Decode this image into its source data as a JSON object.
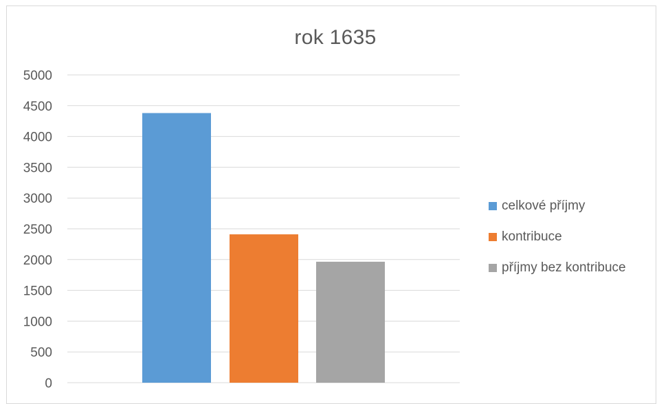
{
  "chart_data": {
    "type": "bar",
    "title": "rok 1635",
    "categories": [
      "celkové příjmy",
      "kontribuce",
      "příjmy bez kontribuce"
    ],
    "values": [
      4380,
      2410,
      1965
    ],
    "colors": [
      "#5b9bd5",
      "#ed7d31",
      "#a5a5a5"
    ],
    "ylim": [
      0,
      5000
    ],
    "yticks": [
      "0",
      "500",
      "1000",
      "1500",
      "2000",
      "2500",
      "3000",
      "3500",
      "4000",
      "4500",
      "5000"
    ],
    "xlabel": "",
    "ylabel": "",
    "grid": true,
    "legend_position": "right"
  }
}
